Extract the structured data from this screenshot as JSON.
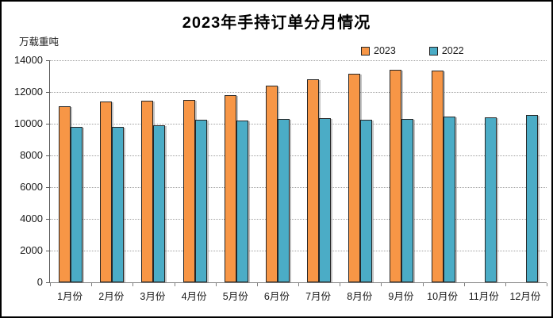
{
  "chart_data": {
    "type": "bar",
    "title": "2023年手持订单分月情况",
    "unit_label": "万载重吨",
    "categories": [
      "1月份",
      "2月份",
      "3月份",
      "4月份",
      "5月份",
      "6月份",
      "7月份",
      "8月份",
      "9月份",
      "10月份",
      "11月份",
      "12月份"
    ],
    "series": [
      {
        "name": "2023",
        "color": "#F79646",
        "values": [
          11100,
          11400,
          11450,
          11500,
          11800,
          12400,
          12800,
          13150,
          13400,
          13350,
          null,
          null
        ]
      },
      {
        "name": "2022",
        "color": "#4BACC6",
        "values": [
          9800,
          9780,
          9900,
          10250,
          10200,
          10280,
          10350,
          10250,
          10280,
          10430,
          10380,
          10550
        ]
      }
    ],
    "ylim": [
      0,
      14000
    ],
    "yticks": [
      0,
      2000,
      4000,
      6000,
      8000,
      10000,
      12000,
      14000
    ],
    "grid": "horizontal-dotted",
    "legend_position": "top-right",
    "axis_color": "#808080"
  }
}
